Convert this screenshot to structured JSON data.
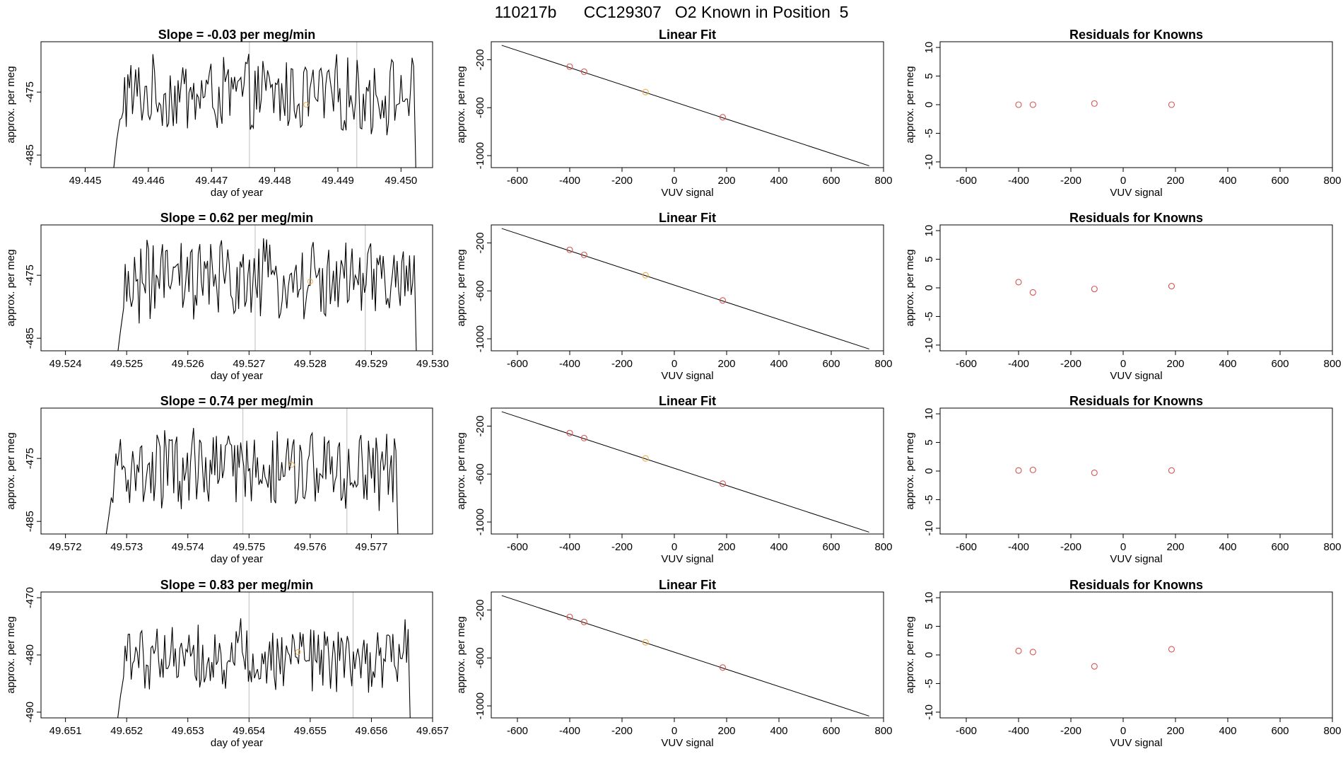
{
  "title": "110217b      CC129307   O2 Known in Position  5",
  "colors": {
    "trace": "#000000",
    "frame": "#000000",
    "vline": "#bebebe",
    "point": "#d9534f",
    "highlight": "#f0ad4e"
  },
  "chart_data": [
    {
      "row": 1,
      "panel": "trace",
      "type": "line",
      "title": "Slope =  -0.03  per meg/min",
      "xlabel": "day of year",
      "ylabel": "approx. per meg",
      "xlim": [
        49.4443,
        49.4505
      ],
      "ylim": [
        -487,
        -467
      ],
      "xticks": [
        49.445,
        49.446,
        49.447,
        49.448,
        49.449,
        49.45
      ],
      "xtick_labels": [
        "49.445",
        "49.446",
        "49.447",
        "49.448",
        "49.449",
        "49.450"
      ],
      "yticks": [
        -475,
        -485
      ],
      "ytick_labels": [
        "-475",
        "-485"
      ],
      "x_start": 49.4455,
      "x_end": 49.4502,
      "level": -475.5,
      "amplitude": 5.5,
      "vlines": [
        49.4476,
        49.4493
      ],
      "marker": [
        49.4485,
        -477
      ]
    },
    {
      "row": 1,
      "panel": "fit",
      "type": "line",
      "title": "Linear Fit",
      "xlabel": "VUV signal",
      "ylabel": "approx. per meg",
      "xlim": [
        -700,
        800
      ],
      "ylim": [
        -1100,
        -50
      ],
      "xticks": [
        -600,
        -400,
        -200,
        0,
        200,
        400,
        600,
        800
      ],
      "xtick_labels": [
        "-600",
        "-400",
        "-200",
        "0",
        "200",
        "400",
        "600",
        "800"
      ],
      "yticks": [
        -200,
        -600,
        -1000
      ],
      "ytick_labels": [
        "-200",
        "-600",
        "-1000"
      ],
      "line": [
        [
          -660,
          -80
        ],
        [
          745,
          -1085
        ]
      ],
      "points": [
        [
          -400,
          -258
        ],
        [
          -345,
          -300
        ],
        [
          -110,
          -470
        ],
        [
          185,
          -680
        ]
      ],
      "highlight_index": 2
    },
    {
      "row": 1,
      "panel": "resid",
      "type": "scatter",
      "title": "Residuals for Knowns",
      "xlabel": "VUV signal",
      "ylabel": "approx. per meg",
      "xlim": [
        -700,
        800
      ],
      "ylim": [
        -11,
        11
      ],
      "xticks": [
        -600,
        -400,
        -200,
        0,
        200,
        400,
        600,
        800
      ],
      "xtick_labels": [
        "-600",
        "-400",
        "-200",
        "0",
        "200",
        "400",
        "600",
        "800"
      ],
      "yticks": [
        10,
        5,
        0,
        -5,
        -10
      ],
      "ytick_labels": [
        "10",
        "5",
        "0",
        "-5",
        "-10"
      ],
      "points": [
        [
          -400,
          0
        ],
        [
          -345,
          0
        ],
        [
          -110,
          0.2
        ],
        [
          185,
          0
        ]
      ]
    },
    {
      "row": 2,
      "panel": "trace",
      "type": "line",
      "title": "Slope =  0.62  per meg/min",
      "xlabel": "day of year",
      "ylabel": "approx. per meg",
      "xlim": [
        49.5236,
        49.53
      ],
      "ylim": [
        -487,
        -467
      ],
      "xticks": [
        49.524,
        49.525,
        49.526,
        49.527,
        49.528,
        49.529,
        49.53
      ],
      "xtick_labels": [
        "49.524",
        "49.525",
        "49.526",
        "49.527",
        "49.528",
        "49.529",
        "49.530"
      ],
      "yticks": [
        -475,
        -485
      ],
      "ytick_labels": [
        "-475",
        "-485"
      ],
      "x_start": 49.5249,
      "x_end": 49.5297,
      "level": -476,
      "amplitude": 6,
      "vlines": [
        49.5271,
        49.5289
      ],
      "marker": [
        49.528,
        -476
      ]
    },
    {
      "row": 2,
      "panel": "fit",
      "type": "line",
      "title": "Linear Fit",
      "xlabel": "VUV signal",
      "ylabel": "approx. per meg",
      "xlim": [
        -700,
        800
      ],
      "ylim": [
        -1100,
        -50
      ],
      "xticks": [
        -600,
        -400,
        -200,
        0,
        200,
        400,
        600,
        800
      ],
      "xtick_labels": [
        "-600",
        "-400",
        "-200",
        "0",
        "200",
        "400",
        "600",
        "800"
      ],
      "yticks": [
        -200,
        -600,
        -1000
      ],
      "ytick_labels": [
        "-200",
        "-600",
        "-1000"
      ],
      "line": [
        [
          -660,
          -80
        ],
        [
          745,
          -1085
        ]
      ],
      "points": [
        [
          -400,
          -258
        ],
        [
          -345,
          -300
        ],
        [
          -110,
          -470
        ],
        [
          185,
          -680
        ]
      ],
      "highlight_index": 2
    },
    {
      "row": 2,
      "panel": "resid",
      "type": "scatter",
      "title": "Residuals for Knowns",
      "xlabel": "VUV signal",
      "ylabel": "approx. per meg",
      "xlim": [
        -700,
        800
      ],
      "ylim": [
        -11,
        11
      ],
      "xticks": [
        -600,
        -400,
        -200,
        0,
        200,
        400,
        600,
        800
      ],
      "xtick_labels": [
        "-600",
        "-400",
        "-200",
        "0",
        "200",
        "400",
        "600",
        "800"
      ],
      "yticks": [
        10,
        5,
        0,
        -5,
        -10
      ],
      "ytick_labels": [
        "10",
        "5",
        "0",
        "-5",
        "-10"
      ],
      "points": [
        [
          -400,
          1
        ],
        [
          -345,
          -0.8
        ],
        [
          -110,
          -0.2
        ],
        [
          185,
          0.3
        ]
      ]
    },
    {
      "row": 3,
      "panel": "trace",
      "type": "line",
      "title": "Slope =  0.74  per meg/min",
      "xlabel": "day of year",
      "ylabel": "approx. per meg",
      "xlim": [
        49.5716,
        49.578
      ],
      "ylim": [
        -487,
        -467
      ],
      "xticks": [
        49.572,
        49.573,
        49.574,
        49.575,
        49.576,
        49.577
      ],
      "xtick_labels": [
        "49.572",
        "49.573",
        "49.574",
        "49.575",
        "49.576",
        "49.577"
      ],
      "yticks": [
        -475,
        -485
      ],
      "ytick_labels": [
        "-475",
        "-485"
      ],
      "x_start": 49.5727,
      "x_end": 49.5774,
      "level": -477,
      "amplitude": 6,
      "vlines": [
        49.5749,
        49.5766
      ],
      "marker": [
        49.5757,
        -476
      ]
    },
    {
      "row": 3,
      "panel": "fit",
      "type": "line",
      "title": "Linear Fit",
      "xlabel": "VUV signal",
      "ylabel": "approx. per meg",
      "xlim": [
        -700,
        800
      ],
      "ylim": [
        -1100,
        -50
      ],
      "xticks": [
        -600,
        -400,
        -200,
        0,
        200,
        400,
        600,
        800
      ],
      "xtick_labels": [
        "-600",
        "-400",
        "-200",
        "0",
        "200",
        "400",
        "600",
        "800"
      ],
      "yticks": [
        -200,
        -600,
        -1000
      ],
      "ytick_labels": [
        "-200",
        "-600",
        "-1000"
      ],
      "line": [
        [
          -660,
          -80
        ],
        [
          745,
          -1085
        ]
      ],
      "points": [
        [
          -400,
          -258
        ],
        [
          -345,
          -300
        ],
        [
          -110,
          -470
        ],
        [
          185,
          -680
        ]
      ],
      "highlight_index": 2
    },
    {
      "row": 3,
      "panel": "resid",
      "type": "scatter",
      "title": "Residuals for Knowns",
      "xlabel": "VUV signal",
      "ylabel": "approx. per meg",
      "xlim": [
        -700,
        800
      ],
      "ylim": [
        -11,
        11
      ],
      "xticks": [
        -600,
        -400,
        -200,
        0,
        200,
        400,
        600,
        800
      ],
      "xtick_labels": [
        "-600",
        "-400",
        "-200",
        "0",
        "200",
        "400",
        "600",
        "800"
      ],
      "yticks": [
        10,
        5,
        0,
        -5,
        -10
      ],
      "ytick_labels": [
        "10",
        "5",
        "0",
        "-5",
        "-10"
      ],
      "points": [
        [
          -400,
          0.1
        ],
        [
          -345,
          0.2
        ],
        [
          -110,
          -0.3
        ],
        [
          185,
          0.1
        ]
      ]
    },
    {
      "row": 4,
      "panel": "trace",
      "type": "line",
      "title": "Slope =  0.83  per meg/min",
      "xlabel": "day of year",
      "ylabel": "approx. per meg",
      "xlim": [
        49.6506,
        49.657
      ],
      "ylim": [
        -491,
        -469
      ],
      "xticks": [
        49.651,
        49.652,
        49.653,
        49.654,
        49.655,
        49.656,
        49.657
      ],
      "xtick_labels": [
        "49.651",
        "49.652",
        "49.653",
        "49.654",
        "49.655",
        "49.656",
        "49.657"
      ],
      "yticks": [
        -470,
        -480,
        -490
      ],
      "ytick_labels": [
        "-470",
        "-480",
        "-490"
      ],
      "x_start": 49.6519,
      "x_end": 49.6566,
      "level": -480,
      "amplitude": 5.5,
      "vlines": [
        49.654,
        49.6557
      ],
      "marker": [
        49.6548,
        -479.5
      ]
    },
    {
      "row": 4,
      "panel": "fit",
      "type": "line",
      "title": "Linear Fit",
      "xlabel": "VUV signal",
      "ylabel": "approx. per meg",
      "xlim": [
        -700,
        800
      ],
      "ylim": [
        -1100,
        -50
      ],
      "xticks": [
        -600,
        -400,
        -200,
        0,
        200,
        400,
        600,
        800
      ],
      "xtick_labels": [
        "-600",
        "-400",
        "-200",
        "0",
        "200",
        "400",
        "600",
        "800"
      ],
      "yticks": [
        -200,
        -600,
        -1000
      ],
      "ytick_labels": [
        "-200",
        "-600",
        "-1000"
      ],
      "line": [
        [
          -660,
          -80
        ],
        [
          745,
          -1085
        ]
      ],
      "points": [
        [
          -400,
          -258
        ],
        [
          -345,
          -300
        ],
        [
          -110,
          -470
        ],
        [
          185,
          -680
        ]
      ],
      "highlight_index": 2
    },
    {
      "row": 4,
      "panel": "resid",
      "type": "scatter",
      "title": "Residuals for Knowns",
      "xlabel": "VUV signal",
      "ylabel": "approx. per meg",
      "xlim": [
        -700,
        800
      ],
      "ylim": [
        -11,
        11
      ],
      "xticks": [
        -600,
        -400,
        -200,
        0,
        200,
        400,
        600,
        800
      ],
      "xtick_labels": [
        "-600",
        "-400",
        "-200",
        "0",
        "200",
        "400",
        "600",
        "800"
      ],
      "yticks": [
        10,
        5,
        0,
        -5,
        -10
      ],
      "ytick_labels": [
        "10",
        "5",
        "0",
        "-5",
        "-10"
      ],
      "points": [
        [
          -400,
          0.7
        ],
        [
          -345,
          0.5
        ],
        [
          -110,
          -2
        ],
        [
          185,
          1
        ]
      ]
    }
  ]
}
